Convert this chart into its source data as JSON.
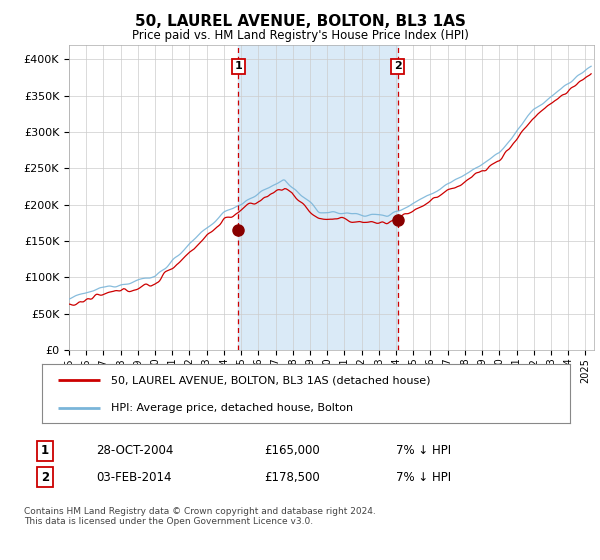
{
  "title": "50, LAUREL AVENUE, BOLTON, BL3 1AS",
  "subtitle": "Price paid vs. HM Land Registry's House Price Index (HPI)",
  "ylim": [
    0,
    420000
  ],
  "yticks": [
    0,
    50000,
    100000,
    150000,
    200000,
    250000,
    300000,
    350000,
    400000
  ],
  "year_start": 1995,
  "year_end": 2025,
  "sale1_date": 2004.83,
  "sale1_price": 165000,
  "sale2_date": 2014.09,
  "sale2_price": 178500,
  "hpi_color": "#7ab5d9",
  "price_color": "#cc0000",
  "sale_marker_color": "#880000",
  "shaded_region_color": "#daeaf7",
  "vline_color": "#cc0000",
  "legend_label1": "50, LAUREL AVENUE, BOLTON, BL3 1AS (detached house)",
  "legend_label2": "HPI: Average price, detached house, Bolton",
  "table_row1_num": "1",
  "table_row1_date": "28-OCT-2004",
  "table_row1_price": "£165,000",
  "table_row1_hpi": "7% ↓ HPI",
  "table_row2_num": "2",
  "table_row2_date": "03-FEB-2014",
  "table_row2_price": "£178,500",
  "table_row2_hpi": "7% ↓ HPI",
  "footnote": "Contains HM Land Registry data © Crown copyright and database right 2024.\nThis data is licensed under the Open Government Licence v3.0."
}
